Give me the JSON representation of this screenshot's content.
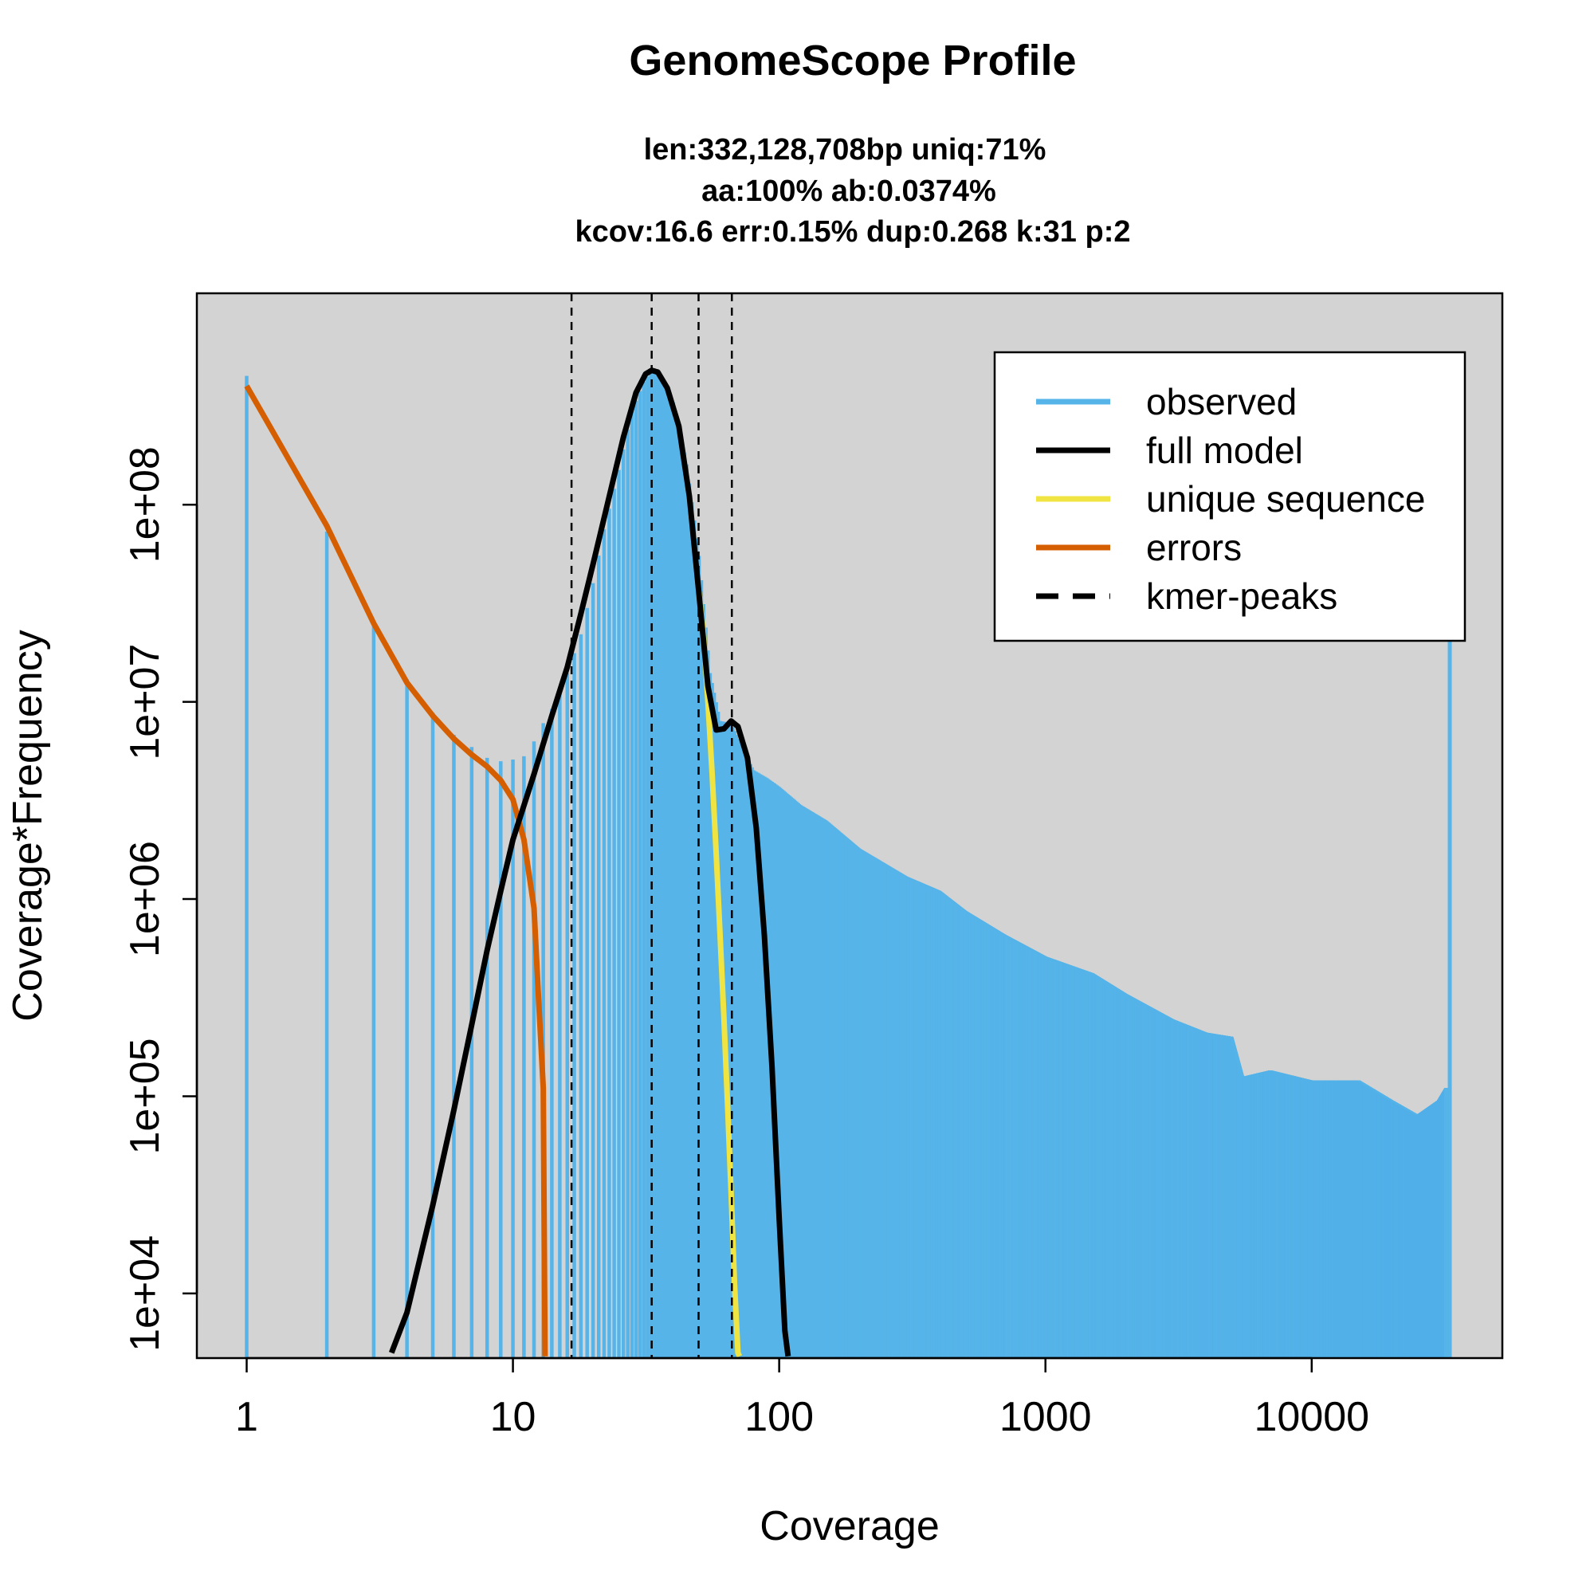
{
  "chart_data": {
    "type": "bar",
    "title": "GenomeScope Profile",
    "subtitle_lines": [
      "len:332,128,708bp uniq:71%",
      "aa:100% ab:0.0374%",
      "kcov:16.6 err:0.15%  dup:0.268  k:31 p:2"
    ],
    "xlabel": "Coverage",
    "ylabel": "Coverage*Frequency",
    "x_scale": "log",
    "y_scale": "log",
    "xlim": [
      0.65,
      52000
    ],
    "ylim": [
      4700,
      1180000000
    ],
    "x_ticks": [
      {
        "value": 1,
        "label": "1"
      },
      {
        "value": 10,
        "label": "10"
      },
      {
        "value": 100,
        "label": "100"
      },
      {
        "value": 1000,
        "label": "1000"
      },
      {
        "value": 10000,
        "label": "10000"
      }
    ],
    "y_ticks": [
      {
        "value": 10000,
        "label": "1e+04"
      },
      {
        "value": 100000,
        "label": "1e+05"
      },
      {
        "value": 1000000,
        "label": "1e+06"
      },
      {
        "value": 10000000,
        "label": "1e+07"
      },
      {
        "value": 100000000,
        "label": "1e+08"
      }
    ],
    "background": "#d3d3d3",
    "grid": false,
    "legend_position": "top-right",
    "legend": [
      {
        "label": "observed",
        "color": "#56b4e9",
        "style": "solid"
      },
      {
        "label": "full model",
        "color": "#000000",
        "style": "solid"
      },
      {
        "label": "unique sequence",
        "color": "#f0e442",
        "style": "solid"
      },
      {
        "label": "errors",
        "color": "#d55e00",
        "style": "solid"
      },
      {
        "label": "kmer-peaks",
        "color": "#000000",
        "style": "dashed"
      }
    ],
    "kmer_peaks": [
      16.6,
      33.2,
      49.8,
      66.4
    ],
    "series": [
      {
        "name": "observed",
        "color": "#56b4e9",
        "render": "histogram",
        "points": [
          [
            1,
            450000000
          ],
          [
            2,
            73000000
          ],
          [
            3,
            25000000
          ],
          [
            4,
            13000000
          ],
          [
            5,
            8800000
          ],
          [
            6,
            6800000
          ],
          [
            7,
            5900000
          ],
          [
            8,
            5200000
          ],
          [
            9,
            5000000
          ],
          [
            10,
            5100000
          ],
          [
            11,
            5300000
          ],
          [
            12,
            6300000
          ],
          [
            13,
            7800000
          ],
          [
            14,
            9200000
          ],
          [
            15,
            11500000
          ],
          [
            16,
            14000000
          ],
          [
            18,
            22000000
          ],
          [
            20,
            40000000
          ],
          [
            22,
            75000000
          ],
          [
            25,
            150000000
          ],
          [
            28,
            300000000
          ],
          [
            31,
            420000000
          ],
          [
            33.2,
            480000000
          ],
          [
            36,
            450000000
          ],
          [
            40,
            330000000
          ],
          [
            45,
            160000000
          ],
          [
            50,
            55000000
          ],
          [
            55,
            14000000
          ],
          [
            60,
            8000000
          ],
          [
            66,
            7800000
          ],
          [
            70,
            6500000
          ],
          [
            80,
            4500000
          ],
          [
            90,
            4100000
          ],
          [
            100,
            3700000
          ],
          [
            120,
            3000000
          ],
          [
            150,
            2500000
          ],
          [
            200,
            1800000
          ],
          [
            300,
            1300000
          ],
          [
            400,
            1100000
          ],
          [
            500,
            870000
          ],
          [
            700,
            660000
          ],
          [
            1000,
            510000
          ],
          [
            1500,
            420000
          ],
          [
            2000,
            330000
          ],
          [
            3000,
            245000
          ],
          [
            4000,
            210000
          ],
          [
            5000,
            200000
          ],
          [
            5500,
            125000
          ],
          [
            7000,
            135000
          ],
          [
            10000,
            120000
          ],
          [
            15000,
            120000
          ],
          [
            20000,
            95000
          ],
          [
            25000,
            80000
          ],
          [
            30000,
            95000
          ],
          [
            32000,
            110000
          ],
          [
            33000,
            450000000
          ]
        ]
      },
      {
        "name": "full model",
        "color": "#000000",
        "render": "line",
        "points": [
          [
            3.5,
            5000
          ],
          [
            4,
            8000
          ],
          [
            5,
            28000
          ],
          [
            6,
            85000
          ],
          [
            7,
            230000
          ],
          [
            8,
            550000
          ],
          [
            9,
            1100000
          ],
          [
            10,
            2000000
          ],
          [
            12,
            4300000
          ],
          [
            14,
            8500000
          ],
          [
            16,
            15000000
          ],
          [
            18,
            28000000
          ],
          [
            20,
            50000000
          ],
          [
            23,
            110000000
          ],
          [
            26,
            220000000
          ],
          [
            29,
            370000000
          ],
          [
            31.5,
            460000000
          ],
          [
            33.2,
            480000000
          ],
          [
            35,
            470000000
          ],
          [
            38,
            390000000
          ],
          [
            42,
            250000000
          ],
          [
            46,
            110000000
          ],
          [
            50,
            35000000
          ],
          [
            54,
            12000000
          ],
          [
            58,
            7200000
          ],
          [
            62,
            7300000
          ],
          [
            66,
            8000000
          ],
          [
            70,
            7500000
          ],
          [
            76,
            5200000
          ],
          [
            82,
            2300000
          ],
          [
            88,
            650000
          ],
          [
            94,
            140000
          ],
          [
            100,
            24000
          ],
          [
            105,
            6500
          ],
          [
            108,
            4800
          ]
        ]
      },
      {
        "name": "unique sequence",
        "color": "#f0e442",
        "render": "line",
        "points": [
          [
            50,
            36000000
          ],
          [
            52,
            22000000
          ],
          [
            54,
            10000000
          ],
          [
            56,
            4300000
          ],
          [
            58,
            1700000
          ],
          [
            60,
            650000
          ],
          [
            62,
            250000
          ],
          [
            64,
            90000
          ],
          [
            66,
            32000
          ],
          [
            68,
            11000
          ],
          [
            70,
            5000
          ],
          [
            71,
            4800
          ]
        ]
      },
      {
        "name": "errors",
        "color": "#d55e00",
        "render": "line",
        "points": [
          [
            1,
            400000000
          ],
          [
            2,
            78000000
          ],
          [
            3,
            25000000
          ],
          [
            4,
            12500000
          ],
          [
            5,
            8500000
          ],
          [
            6,
            6500000
          ],
          [
            7,
            5400000
          ],
          [
            8,
            4700000
          ],
          [
            9,
            4000000
          ],
          [
            10,
            3200000
          ],
          [
            11,
            2000000
          ],
          [
            12,
            900000
          ],
          [
            12.5,
            300000
          ],
          [
            13,
            110000
          ],
          [
            13.2,
            4800
          ]
        ]
      }
    ]
  }
}
